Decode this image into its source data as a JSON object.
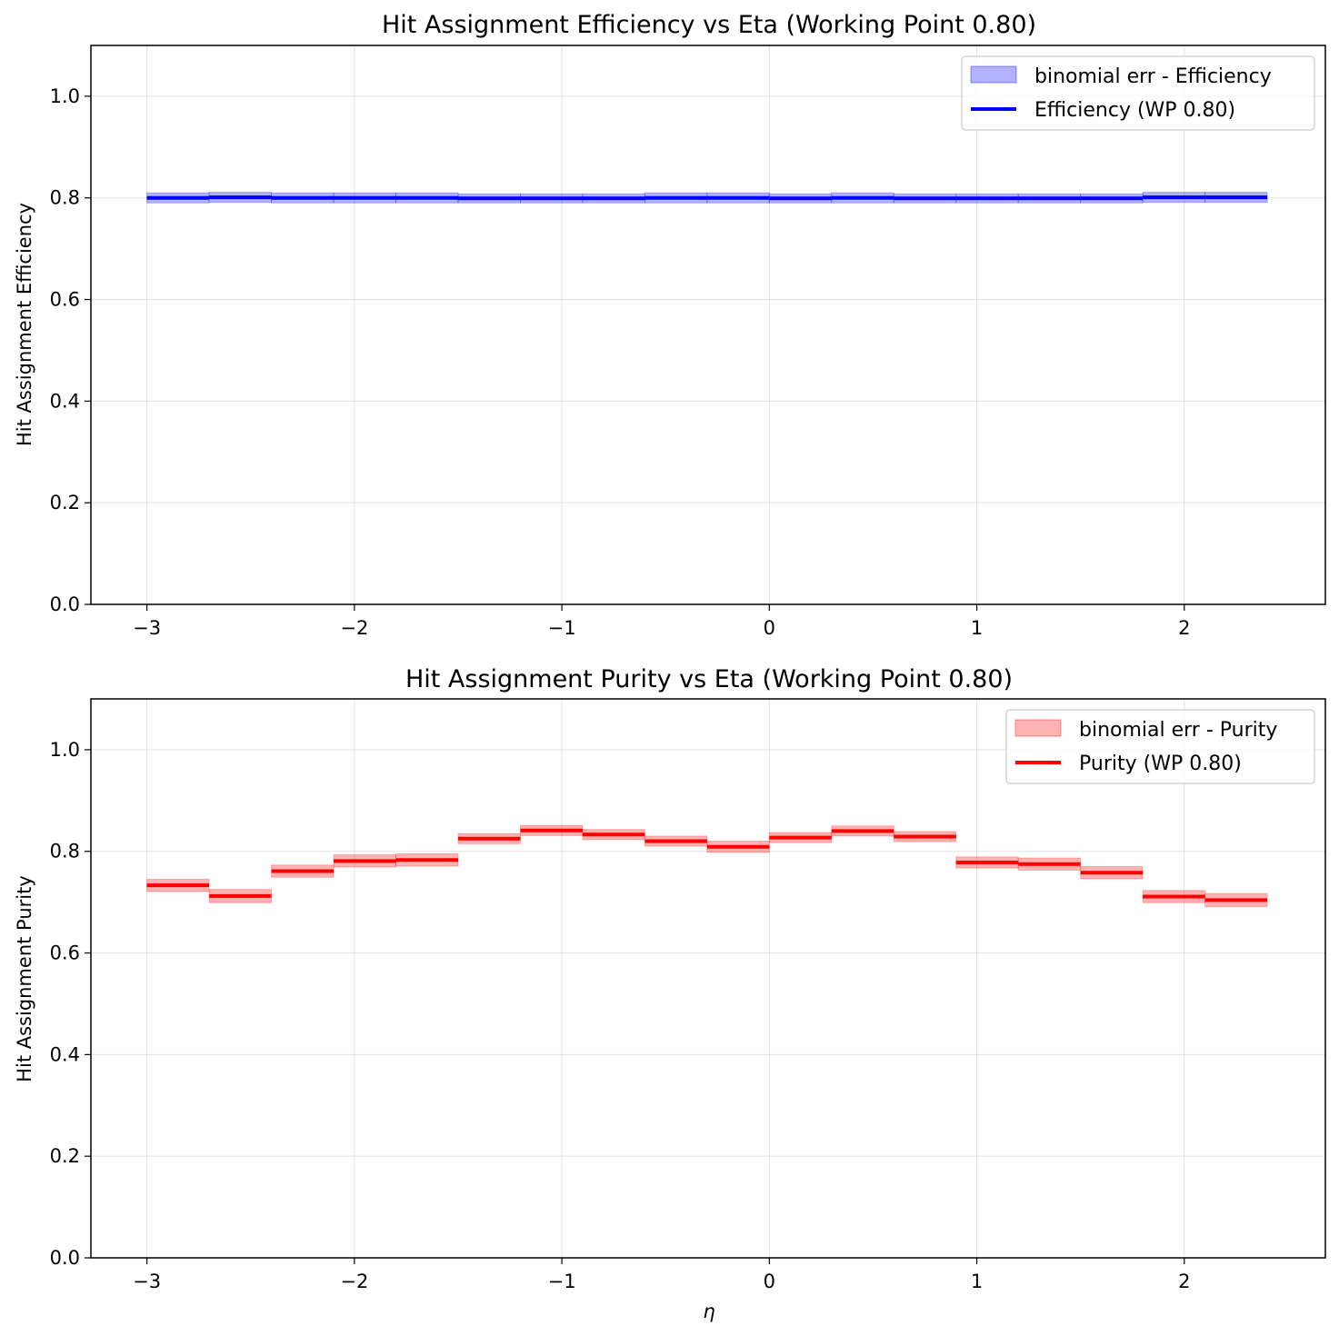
{
  "chart_data": [
    {
      "type": "line",
      "title": "Hit Assignment Efficiency vs Eta (Working Point 0.80)",
      "xlabel": "",
      "ylabel": "Hit Assignment Efficiency",
      "xlim": [
        -3.27,
        2.68
      ],
      "ylim": [
        0.0,
        1.1
      ],
      "xticks": [
        -3,
        -2,
        -1,
        0,
        1,
        2
      ],
      "xtick_labels": [
        "−3",
        "−2",
        "−1",
        "0",
        "1",
        "2"
      ],
      "yticks": [
        0.0,
        0.2,
        0.4,
        0.6,
        0.8,
        1.0
      ],
      "ytick_labels": [
        "0.0",
        "0.2",
        "0.4",
        "0.6",
        "0.8",
        "1.0"
      ],
      "grid": true,
      "legend_position": "top-right",
      "bin_edges": [
        -3.0,
        -2.7,
        -2.4,
        -2.1,
        -1.8,
        -1.5,
        -1.2,
        -0.9,
        -0.6,
        -0.3,
        0.0,
        0.3,
        0.6,
        0.9,
        1.2,
        1.5,
        1.8,
        2.1,
        2.4
      ],
      "series": [
        {
          "name": "Efficiency (WP 0.80)",
          "band_name": "binomial err - Efficiency",
          "color": "#0000ff",
          "band_color": "#0000ff",
          "values": [
            0.8,
            0.801,
            0.8,
            0.8,
            0.8,
            0.799,
            0.799,
            0.799,
            0.8,
            0.8,
            0.799,
            0.8,
            0.799,
            0.799,
            0.799,
            0.799,
            0.801,
            0.801
          ],
          "errors": [
            0.01,
            0.01,
            0.01,
            0.01,
            0.01,
            0.009,
            0.009,
            0.009,
            0.01,
            0.01,
            0.009,
            0.01,
            0.009,
            0.009,
            0.009,
            0.009,
            0.01,
            0.01
          ]
        }
      ]
    },
    {
      "type": "line",
      "title": "Hit Assignment Purity vs Eta (Working Point 0.80)",
      "xlabel": "η",
      "ylabel": "Hit Assignment Purity",
      "xlim": [
        -3.27,
        2.68
      ],
      "ylim": [
        0.0,
        1.1
      ],
      "xticks": [
        -3,
        -2,
        -1,
        0,
        1,
        2
      ],
      "xtick_labels": [
        "−3",
        "−2",
        "−1",
        "0",
        "1",
        "2"
      ],
      "yticks": [
        0.0,
        0.2,
        0.4,
        0.6,
        0.8,
        1.0
      ],
      "ytick_labels": [
        "0.0",
        "0.2",
        "0.4",
        "0.6",
        "0.8",
        "1.0"
      ],
      "grid": true,
      "legend_position": "top-right",
      "bin_edges": [
        -3.0,
        -2.7,
        -2.4,
        -2.1,
        -1.8,
        -1.5,
        -1.2,
        -0.9,
        -0.6,
        -0.3,
        0.0,
        0.3,
        0.6,
        0.9,
        1.2,
        1.5,
        1.8,
        2.1,
        2.4
      ],
      "series": [
        {
          "name": "Purity (WP 0.80)",
          "band_name": "binomial err - Purity",
          "color": "#ff0000",
          "band_color": "#ff0000",
          "values": [
            0.733,
            0.712,
            0.761,
            0.781,
            0.783,
            0.825,
            0.841,
            0.833,
            0.82,
            0.809,
            0.827,
            0.84,
            0.829,
            0.778,
            0.775,
            0.758,
            0.711,
            0.704
          ],
          "errors": [
            0.012,
            0.013,
            0.012,
            0.012,
            0.012,
            0.01,
            0.01,
            0.01,
            0.01,
            0.011,
            0.01,
            0.01,
            0.01,
            0.011,
            0.012,
            0.012,
            0.012,
            0.013
          ]
        }
      ]
    }
  ]
}
